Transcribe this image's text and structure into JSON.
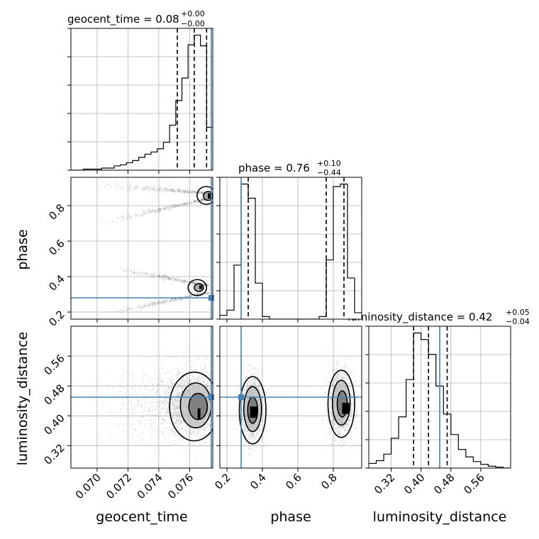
{
  "chart_data": {
    "type": "corner",
    "truth_color": "#4682b4",
    "parameters": [
      "geocent_time",
      "phase",
      "luminosity_distance"
    ],
    "axis_labels": {
      "geocent_time": "geocent_time",
      "phase": "phase",
      "luminosity_distance": "luminosity_distance"
    },
    "titles": [
      {
        "param": "geocent_time",
        "label": "geocent_time = 0.08",
        "sup": "+0.00",
        "sub": "−0.00"
      },
      {
        "param": "phase",
        "label": "phase = 0.76",
        "sup": "+0.10",
        "sub": "−0.44"
      },
      {
        "param": "luminosity_distance",
        "label": "luminosity_distance = 0.42",
        "sup": "+0.05",
        "sub": "−0.04"
      }
    ],
    "ranges": {
      "geocent_time": [
        0.0683,
        0.0775
      ],
      "phase": [
        0.16,
        0.96
      ],
      "luminosity_distance": [
        0.26,
        0.64
      ]
    },
    "ticks": {
      "geocent_time": {
        "values": [
          0.07,
          0.072,
          0.074,
          0.076
        ],
        "labels": [
          "0.070",
          "0.072",
          "0.074",
          "0.076"
        ]
      },
      "phase": {
        "values": [
          0.2,
          0.4,
          0.6,
          0.8
        ],
        "labels": [
          "0.2",
          "0.4",
          "0.6",
          "0.8"
        ]
      },
      "luminosity_distance": {
        "values": [
          0.32,
          0.4,
          0.48,
          0.56
        ],
        "labels": [
          "0.32",
          "0.40",
          "0.48",
          "0.56"
        ]
      }
    },
    "truths": {
      "geocent_time": 0.0774,
      "phase": 0.28,
      "luminosity_distance": 0.45
    },
    "quantiles": {
      "geocent_time": [
        0.0752,
        0.0763,
        0.0771
      ],
      "phase": [
        0.32,
        0.76,
        0.86
      ],
      "luminosity_distance": [
        0.38,
        0.42,
        0.47
      ]
    },
    "histograms": {
      "geocent_time": {
        "bin_edges": [
          0.0683,
          0.0687,
          0.0691,
          0.0695,
          0.0699,
          0.0703,
          0.0707,
          0.0711,
          0.0715,
          0.0719,
          0.0723,
          0.0727,
          0.0731,
          0.0735,
          0.0739,
          0.0743,
          0.0747,
          0.0751,
          0.0755,
          0.0759,
          0.0763,
          0.0767,
          0.0771,
          0.0775
        ],
        "counts": [
          0,
          0,
          1,
          1,
          1,
          2,
          2,
          4,
          5,
          7,
          9,
          12,
          15,
          17,
          20,
          26,
          42,
          65,
          86,
          117,
          126,
          116,
          40
        ]
      },
      "phase": {
        "bin_edges": [
          0.16,
          0.2,
          0.24,
          0.28,
          0.32,
          0.36,
          0.4,
          0.44,
          0.48,
          0.52,
          0.56,
          0.6,
          0.64,
          0.68,
          0.72,
          0.76,
          0.8,
          0.84,
          0.88,
          0.92,
          0.96
        ],
        "counts": [
          3,
          7,
          42,
          105,
          94,
          28,
          2,
          0,
          0,
          0,
          0,
          0,
          0,
          0,
          2,
          46,
          103,
          105,
          32,
          5
        ]
      },
      "luminosity_distance": {
        "bin_edges": [
          0.26,
          0.28,
          0.3,
          0.32,
          0.34,
          0.36,
          0.38,
          0.4,
          0.42,
          0.44,
          0.46,
          0.48,
          0.5,
          0.52,
          0.54,
          0.56,
          0.58,
          0.6,
          0.62,
          0.64
        ],
        "counts": [
          5,
          8,
          15,
          32,
          55,
          95,
          145,
          138,
          122,
          88,
          58,
          36,
          20,
          12,
          7,
          4,
          2,
          1,
          0
        ]
      }
    },
    "scatter_regions": [
      {
        "x": "geocent_time",
        "y": "phase",
        "note": "two narrow streaks converging near geocent_time 0.0772 at phase ~0.86 and ~0.33"
      },
      {
        "x": "geocent_time",
        "y": "luminosity_distance"
      },
      {
        "x": "phase",
        "y": "luminosity_distance"
      }
    ],
    "grid": true
  }
}
